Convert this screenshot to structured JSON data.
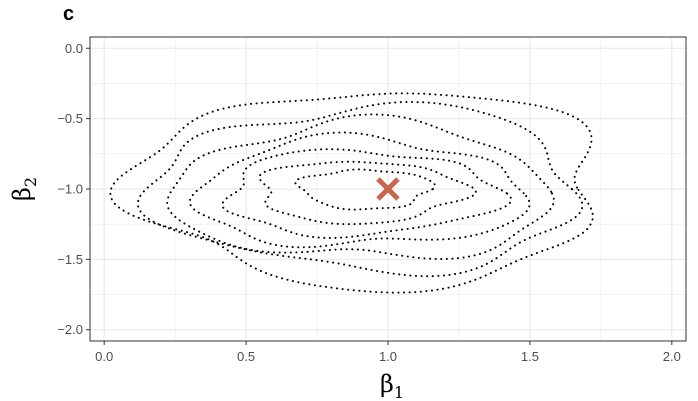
{
  "panel_tag": "c",
  "chart_data": {
    "type": "contour",
    "xlabel": "β",
    "xlabel_subscript": "1",
    "ylabel": "β",
    "ylabel_subscript": "2",
    "xlim": [
      -0.05,
      2.05
    ],
    "ylim": [
      -2.08,
      0.08
    ],
    "x_ticks": [
      0.0,
      0.5,
      1.0,
      1.5,
      2.0
    ],
    "x_tick_labels": [
      "0.0",
      "0.5",
      "1.0",
      "1.5",
      "2.0"
    ],
    "y_ticks": [
      0.0,
      -0.5,
      -1.0,
      -1.5,
      -2.0
    ],
    "y_tick_labels": [
      "0.0",
      "−0.5",
      "−1.0",
      "−1.5",
      "−2.0"
    ],
    "grid": true,
    "line_style": "dotted",
    "colors": {
      "contour": "#000000",
      "marker": "#c8664f",
      "grid": "#ebebeb",
      "panel_border": "#333333"
    },
    "marker": {
      "shape": "x",
      "x": 1.0,
      "y": -1.0
    },
    "contour_levels": [
      {
        "cx": 0.92,
        "cy": -1.0,
        "rx": 0.23,
        "ry": 0.14
      },
      {
        "cx": 0.9,
        "cy": -1.02,
        "rx": 0.36,
        "ry": 0.22
      },
      {
        "cx": 0.9,
        "cy": -1.03,
        "rx": 0.48,
        "ry": 0.3
      },
      {
        "cx": 0.9,
        "cy": -1.03,
        "rx": 0.58,
        "ry": 0.38
      },
      {
        "cx": 0.91,
        "cy": -1.02,
        "rx": 0.67,
        "ry": 0.48
      },
      {
        "cx": 0.93,
        "cy": -1.0,
        "rx": 0.75,
        "ry": 0.58
      },
      {
        "cx": 0.94,
        "cy": -0.99,
        "rx": 0.82,
        "ry": 0.7
      }
    ]
  }
}
